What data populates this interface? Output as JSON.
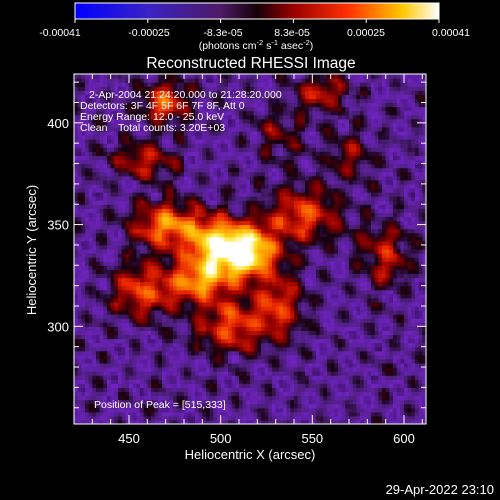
{
  "chart_data": {
    "type": "heatmap",
    "title": "Reconstructed RHESSI Image",
    "xlabel": "Heliocentric X (arcsec)",
    "ylabel": "Heliocentric Y (arcsec)",
    "xlim": [
      420,
      612
    ],
    "ylim": [
      252,
      424
    ],
    "x_ticks": [
      450,
      500,
      550,
      600
    ],
    "x_tick_labels": [
      "450",
      "500",
      "550",
      "600"
    ],
    "y_ticks": [
      300,
      350,
      400
    ],
    "y_tick_labels": [
      "300",
      "350",
      "400"
    ],
    "colorbar": {
      "colormap": "blue-purple-red-yellow-white",
      "range": [
        -0.00041,
        0.00041
      ],
      "tick_labels": [
        "-0.00041",
        "-0.00025",
        "-8.3e-05",
        "8.3e-05",
        "0.00025",
        "0.00041"
      ],
      "unit_label": "(photons cm",
      "unit_sup1": "-2",
      "unit_mid": " s",
      "unit_sup2": "-1",
      "unit_end": " asec",
      "unit_sup3": "-2",
      "unit_close": ")"
    },
    "annotations": {
      "time": "2-Apr-2004 21:24:20.000 to 21:28:20.000",
      "detectors": "Detectors: 3F 4F 5F 6F 7F 8F, Att 0",
      "energy": "Energy Range: 12.0 - 25.0 keV",
      "clean_label": "Clean",
      "counts": "Total counts: 3.20E+03",
      "peak": "Position of Peak = [515,333]"
    },
    "peak": {
      "x": 515,
      "y": 333
    },
    "emission_sources": [
      {
        "x": 514,
        "y": 337,
        "sx": 11,
        "sy": 9,
        "amp": 1.25
      },
      {
        "x": 495,
        "y": 342,
        "sx": 10,
        "sy": 9,
        "amp": 0.8
      },
      {
        "x": 490,
        "y": 323,
        "sx": 12,
        "sy": 8,
        "amp": 0.75
      },
      {
        "x": 470,
        "y": 350,
        "sx": 12,
        "sy": 8,
        "amp": 0.75
      },
      {
        "x": 458,
        "y": 318,
        "sx": 12,
        "sy": 9,
        "amp": 0.6
      },
      {
        "x": 505,
        "y": 300,
        "sx": 13,
        "sy": 9,
        "amp": 0.6
      },
      {
        "x": 532,
        "y": 310,
        "sx": 9,
        "sy": 11,
        "amp": 0.55
      },
      {
        "x": 545,
        "y": 355,
        "sx": 14,
        "sy": 10,
        "amp": 0.6
      },
      {
        "x": 470,
        "y": 410,
        "sx": 9,
        "sy": 7,
        "amp": 0.65
      },
      {
        "x": 458,
        "y": 382,
        "sx": 12,
        "sy": 6,
        "amp": 0.5
      },
      {
        "x": 555,
        "y": 415,
        "sx": 10,
        "sy": 6,
        "amp": 0.5
      },
      {
        "x": 590,
        "y": 335,
        "sx": 9,
        "sy": 11,
        "amp": 0.45
      },
      {
        "x": 570,
        "y": 385,
        "sx": 8,
        "sy": 8,
        "amp": 0.35
      },
      {
        "x": 532,
        "y": 395,
        "sx": 9,
        "sy": 7,
        "amp": 0.35
      }
    ]
  },
  "footer": {
    "timestamp": "29-Apr-2022 23:10"
  }
}
